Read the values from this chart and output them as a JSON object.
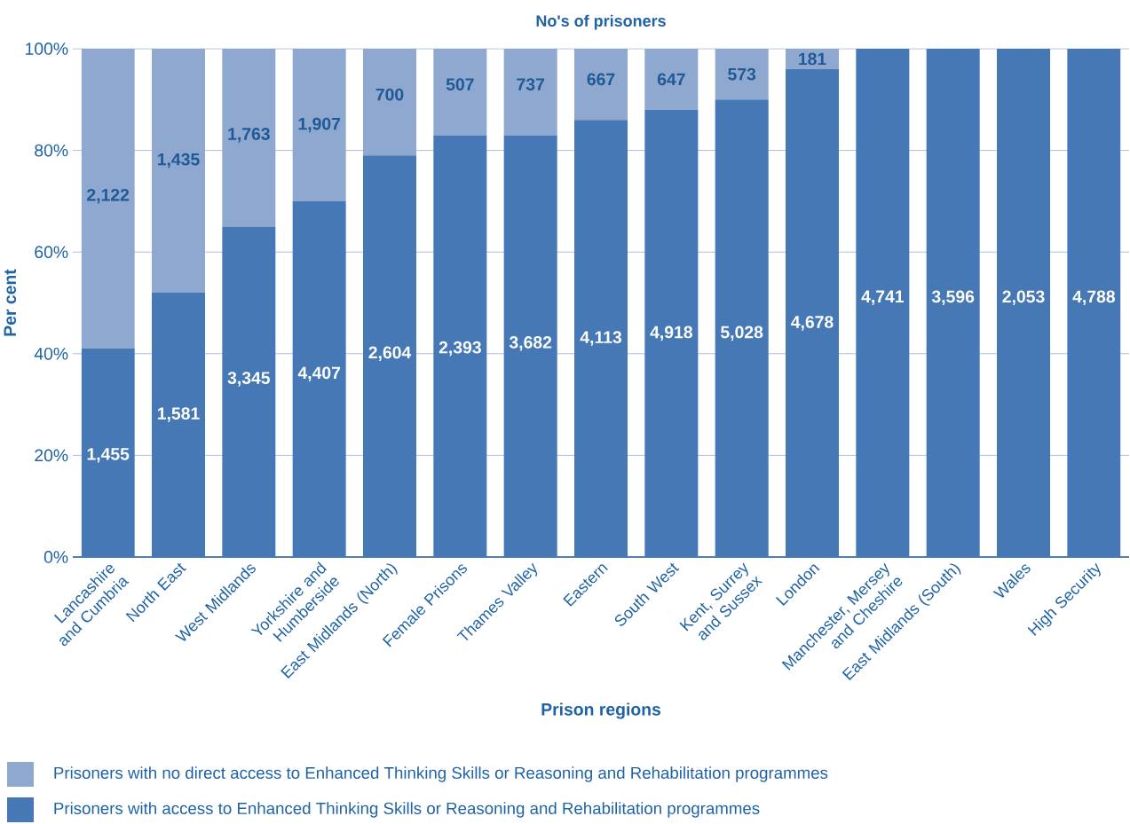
{
  "chart_data": {
    "type": "bar",
    "stacked": true,
    "title": "No's of prisoners",
    "xlabel": "Prison regions",
    "ylabel": "Per cent",
    "categories": [
      "Lancashire and Cumbria",
      "North East",
      "West Midlands",
      "Yorkshire and Humberside",
      "East Midlands (North)",
      "Female Prisons",
      "Thames Valley",
      "Eastern",
      "South West",
      "Kent, Surrey and Sussex",
      "London",
      "Manchester, Mersey and Cheshire",
      "East Midlands (South)",
      "Wales",
      "High Security"
    ],
    "series": [
      {
        "name": "Prisoners with access to Enhanced Thinking Skills or Reasoning and Rehabilitation programmes",
        "color": "#4578b4",
        "values": [
          41,
          52,
          65,
          70,
          79,
          83,
          83,
          86,
          88,
          90,
          96,
          100,
          100,
          100,
          100
        ]
      },
      {
        "name": "Prisoners with no direct access to Enhanced Thinking Skills or Reasoning and Rehabilitation programmes",
        "color": "#8ea8d0",
        "values": [
          59,
          48,
          35,
          30,
          21,
          17,
          17,
          14,
          12,
          10,
          4,
          0,
          0,
          0,
          0
        ]
      }
    ],
    "annotations": [
      {
        "text": "1,455",
        "x": "Lancashire and Cumbria",
        "y": 20
      },
      {
        "text": "1,581",
        "x": "North East",
        "y": 28
      },
      {
        "text": "3,345",
        "x": "West Midlands",
        "y": 35
      },
      {
        "text": "4,407",
        "x": "Yorkshire and Humberside",
        "y": 36
      },
      {
        "text": "2,604",
        "x": "East Midlands (North)",
        "y": 40
      },
      {
        "text": "2,393",
        "x": "Female Prisons",
        "y": 41
      },
      {
        "text": "3,682",
        "x": "Thames Valley",
        "y": 42
      },
      {
        "text": "4,113",
        "x": "Eastern",
        "y": 43
      },
      {
        "text": "4,918",
        "x": "South West",
        "y": 44
      },
      {
        "text": "5,028",
        "x": "Kent, Surrey and Sussex",
        "y": 44
      },
      {
        "text": "4,678",
        "x": "London",
        "y": 46
      },
      {
        "text": "4,741",
        "x": "Manchester, Mersey and Cheshire",
        "y": 51
      },
      {
        "text": "3,596",
        "x": "East Midlands (South)",
        "y": 51
      },
      {
        "text": "2,053",
        "x": "Wales",
        "y": 51
      },
      {
        "text": "4,788",
        "x": "High Security",
        "y": 51
      },
      {
        "text": "2,122",
        "x": "Lancashire and Cumbria",
        "y": 71
      },
      {
        "text": "1,435",
        "x": "North East",
        "y": 78
      },
      {
        "text": "1,763",
        "x": "West Midlands",
        "y": 83
      },
      {
        "text": "1,907",
        "x": "Yorkshire and Humberside",
        "y": 85
      },
      {
        "text": "700",
        "x": "East Midlands (North)",
        "y": 91
      },
      {
        "text": "507",
        "x": "Female Prisons",
        "y": 93
      },
      {
        "text": "737",
        "x": "Thames Valley",
        "y": 93
      },
      {
        "text": "667",
        "x": "Eastern",
        "y": 94
      },
      {
        "text": "647",
        "x": "South West",
        "y": 94
      },
      {
        "text": "573",
        "x": "Kent, Surrey and Sussex",
        "y": 95
      },
      {
        "text": "181",
        "x": "London",
        "y": 98
      }
    ],
    "ylim": [
      0,
      100
    ],
    "yticks": [
      {
        "value": 0,
        "label": "0%"
      },
      {
        "value": 20,
        "label": "20%"
      },
      {
        "value": 40,
        "label": "40%"
      },
      {
        "value": 60,
        "label": "60%"
      },
      {
        "value": 80,
        "label": "80%"
      },
      {
        "value": 100,
        "label": "100%"
      }
    ],
    "grid": "y",
    "legend": "bottom"
  }
}
